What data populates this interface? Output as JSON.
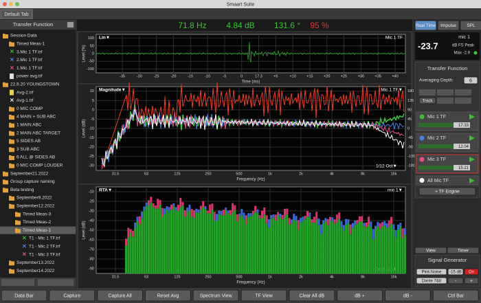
{
  "window": {
    "title": "Smaart Suite",
    "tab": "Default Tab"
  },
  "sidebar": {
    "title": "Transfer Function",
    "items": [
      "Session Data",
      "Timed Meas-1",
      "3.Mic 1 TF.trf",
      "2.Mic 1 TF.trf",
      "1.Mic 1 TF.trf",
      "power avg.trf",
      "22.9.20 YOUNGSTOWN",
      "Avg-2.trf",
      "Avg-1.trf",
      "0 MIC COMP",
      "4 MAIN + SUB ABC",
      "1 MAIN ABC",
      "2 MAIN ABC TARGET",
      "5 SIDES AB",
      "3 SUB ABC",
      "6 ALL @ SIDES AB",
      "0 MIC COMP LOUDER",
      "September21.2022",
      "Group capture naming",
      "Beta testing",
      "September9.2022",
      "September12.2022",
      "Timed Meas-3",
      "Timed Meas-2",
      "Timed Meas-1",
      "T1 - Mic 1 TF.trf",
      "T1 - Mic 2 TF.trf",
      "T1 - Mic 3 TF.trf",
      "September13.2022",
      "September14.2022"
    ]
  },
  "readout": {
    "frequency": "71.8 Hz",
    "level": "4.84 dB",
    "phase": "131.6 °",
    "coherence": "95 %"
  },
  "mode_buttons": [
    "Real Time",
    "Impulse",
    "SPL"
  ],
  "impulse": {
    "label": "Lin▼",
    "trace": "Mic 1 TF",
    "y_label": "Level (%)",
    "yticks": [
      "100",
      "50",
      "0",
      "-50",
      "-100"
    ],
    "x_label": "Time (ms)",
    "xticks": [
      "-35",
      "-30",
      "-25",
      "-20",
      "-15",
      "-10",
      "-5",
      "0",
      "17.3",
      "+5",
      "+10",
      "+15",
      "+20",
      "+25",
      "+30",
      "+35",
      "+40"
    ]
  },
  "transfer": {
    "label": "Magnitude▼",
    "trace": "Mic 1 TF▼",
    "smoothing": "1/12 Oct▼",
    "y_label": "Level (dB)",
    "yticks": [
      "10",
      "5",
      "0",
      "-5",
      "-10",
      "-15",
      "-20",
      "-25",
      "-30"
    ],
    "phase_ticks": [
      "180",
      "135",
      "90",
      "45",
      "0",
      "-45",
      "-90",
      "-135",
      "-180"
    ],
    "x_label": "Frequency (Hz)",
    "xticks": [
      "31.5",
      "63",
      "125",
      "250",
      "500",
      "1k",
      "2k",
      "4k",
      "8k",
      "16k"
    ]
  },
  "rta": {
    "label": "RTA▼",
    "trace": "mic 1▼",
    "smoothing": "1/12 Oct▼",
    "y_label": "Level (dB)",
    "yticks": [
      "-10",
      "-20",
      "-30",
      "-40",
      "-50",
      "-60",
      "-70",
      "-80",
      "-90"
    ],
    "x_label": "Frequency (Hz)",
    "xticks": [
      "31.5",
      "63",
      "125",
      "250",
      "500",
      "1k",
      "2k",
      "4k",
      "8k",
      "16k"
    ]
  },
  "meter": {
    "input": "mic 1",
    "value": "-23.7",
    "unit": "dB FS Peak",
    "max": "Max -2.9"
  },
  "tf_panel": {
    "title": "Transfer Function",
    "averaging_label": "Averaging Depth:",
    "averaging": "6",
    "track": "Track",
    "engines": [
      {
        "name": "Mic 1 TF",
        "delay": "17.33"
      },
      {
        "name": "Mic 2 TF",
        "delay": "12.04"
      },
      {
        "name": "Mic 3 TF",
        "delay": "15.21"
      }
    ],
    "all": "All Mic TF",
    "add": "+ TF Engine"
  },
  "view_buttons": [
    "View",
    "Timer"
  ],
  "generator": {
    "title": "Signal Generator",
    "signal": "Pink Noise",
    "level": "-15 dB",
    "state": "On",
    "output": "Dante 7&8",
    "minus": "-",
    "plus": "+"
  },
  "toolbar": [
    "Data Bar",
    "Capture",
    "Capture All",
    "Reset Avg",
    "Spectrum View",
    "TF View",
    "Clear All dB",
    "dB +",
    "dB -",
    "Ctrl Bar"
  ]
}
